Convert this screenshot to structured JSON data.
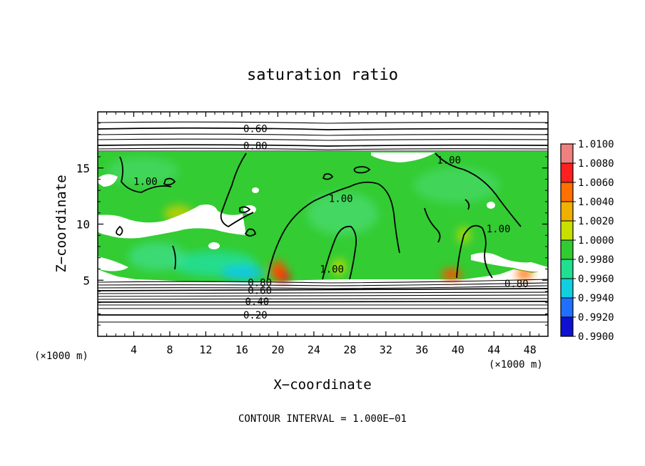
{
  "chart_data": {
    "type": "heatmap",
    "title": "saturation ratio",
    "xlabel": "X−coordinate",
    "ylabel": "Z−coordinate",
    "x_unit_left": "(×1000 m)",
    "x_unit_right": "(×1000 m)",
    "xlim": [
      0,
      50
    ],
    "ylim": [
      0,
      20
    ],
    "xticks": [
      4,
      8,
      12,
      16,
      20,
      24,
      28,
      32,
      36,
      40,
      44,
      48
    ],
    "yticks": [
      5,
      10,
      15
    ],
    "footer": "CONTOUR INTERVAL = 1.000E−01",
    "colorbar": {
      "levels": [
        "1.0100",
        "1.0080",
        "1.0060",
        "1.0040",
        "1.0020",
        "1.0000",
        "0.9980",
        "0.9960",
        "0.9940",
        "0.9920",
        "0.9900"
      ],
      "colors": [
        "#f08080",
        "#ff2020",
        "#ff7000",
        "#f0b000",
        "#c8e000",
        "#30cc30",
        "#20e090",
        "#10d0e0",
        "#2070ff",
        "#1010d0",
        "#6010b0"
      ]
    },
    "contour_labels": [
      {
        "text": "0.60",
        "x": 17.5,
        "z": 18.5
      },
      {
        "text": "0.80",
        "x": 17.5,
        "z": 17.0
      },
      {
        "text": "1.00",
        "x": 5.3,
        "z": 13.8
      },
      {
        "text": "1.00",
        "x": 39.0,
        "z": 15.7
      },
      {
        "text": "1.00",
        "x": 27.0,
        "z": 12.3
      },
      {
        "text": "1.00",
        "x": 44.5,
        "z": 9.6
      },
      {
        "text": "1.00",
        "x": 26.0,
        "z": 6.0
      },
      {
        "text": "0.80",
        "x": 18.0,
        "z": 4.8
      },
      {
        "text": "0.60",
        "x": 18.0,
        "z": 4.1
      },
      {
        "text": "0.40",
        "x": 17.7,
        "z": 3.1
      },
      {
        "text": "0.20",
        "x": 17.5,
        "z": 1.9
      },
      {
        "text": "0.80",
        "x": 46.5,
        "z": 4.7
      }
    ],
    "contour_levels_z": [
      {
        "level": 0.2,
        "z": 1.9
      },
      {
        "level": 0.4,
        "z": 3.1
      },
      {
        "level": 0.6,
        "z": 4.1
      },
      {
        "level": 0.8,
        "z": 4.8
      },
      {
        "level": 0.6,
        "z": 18.5
      },
      {
        "level": 0.8,
        "z": 17.0
      }
    ]
  }
}
